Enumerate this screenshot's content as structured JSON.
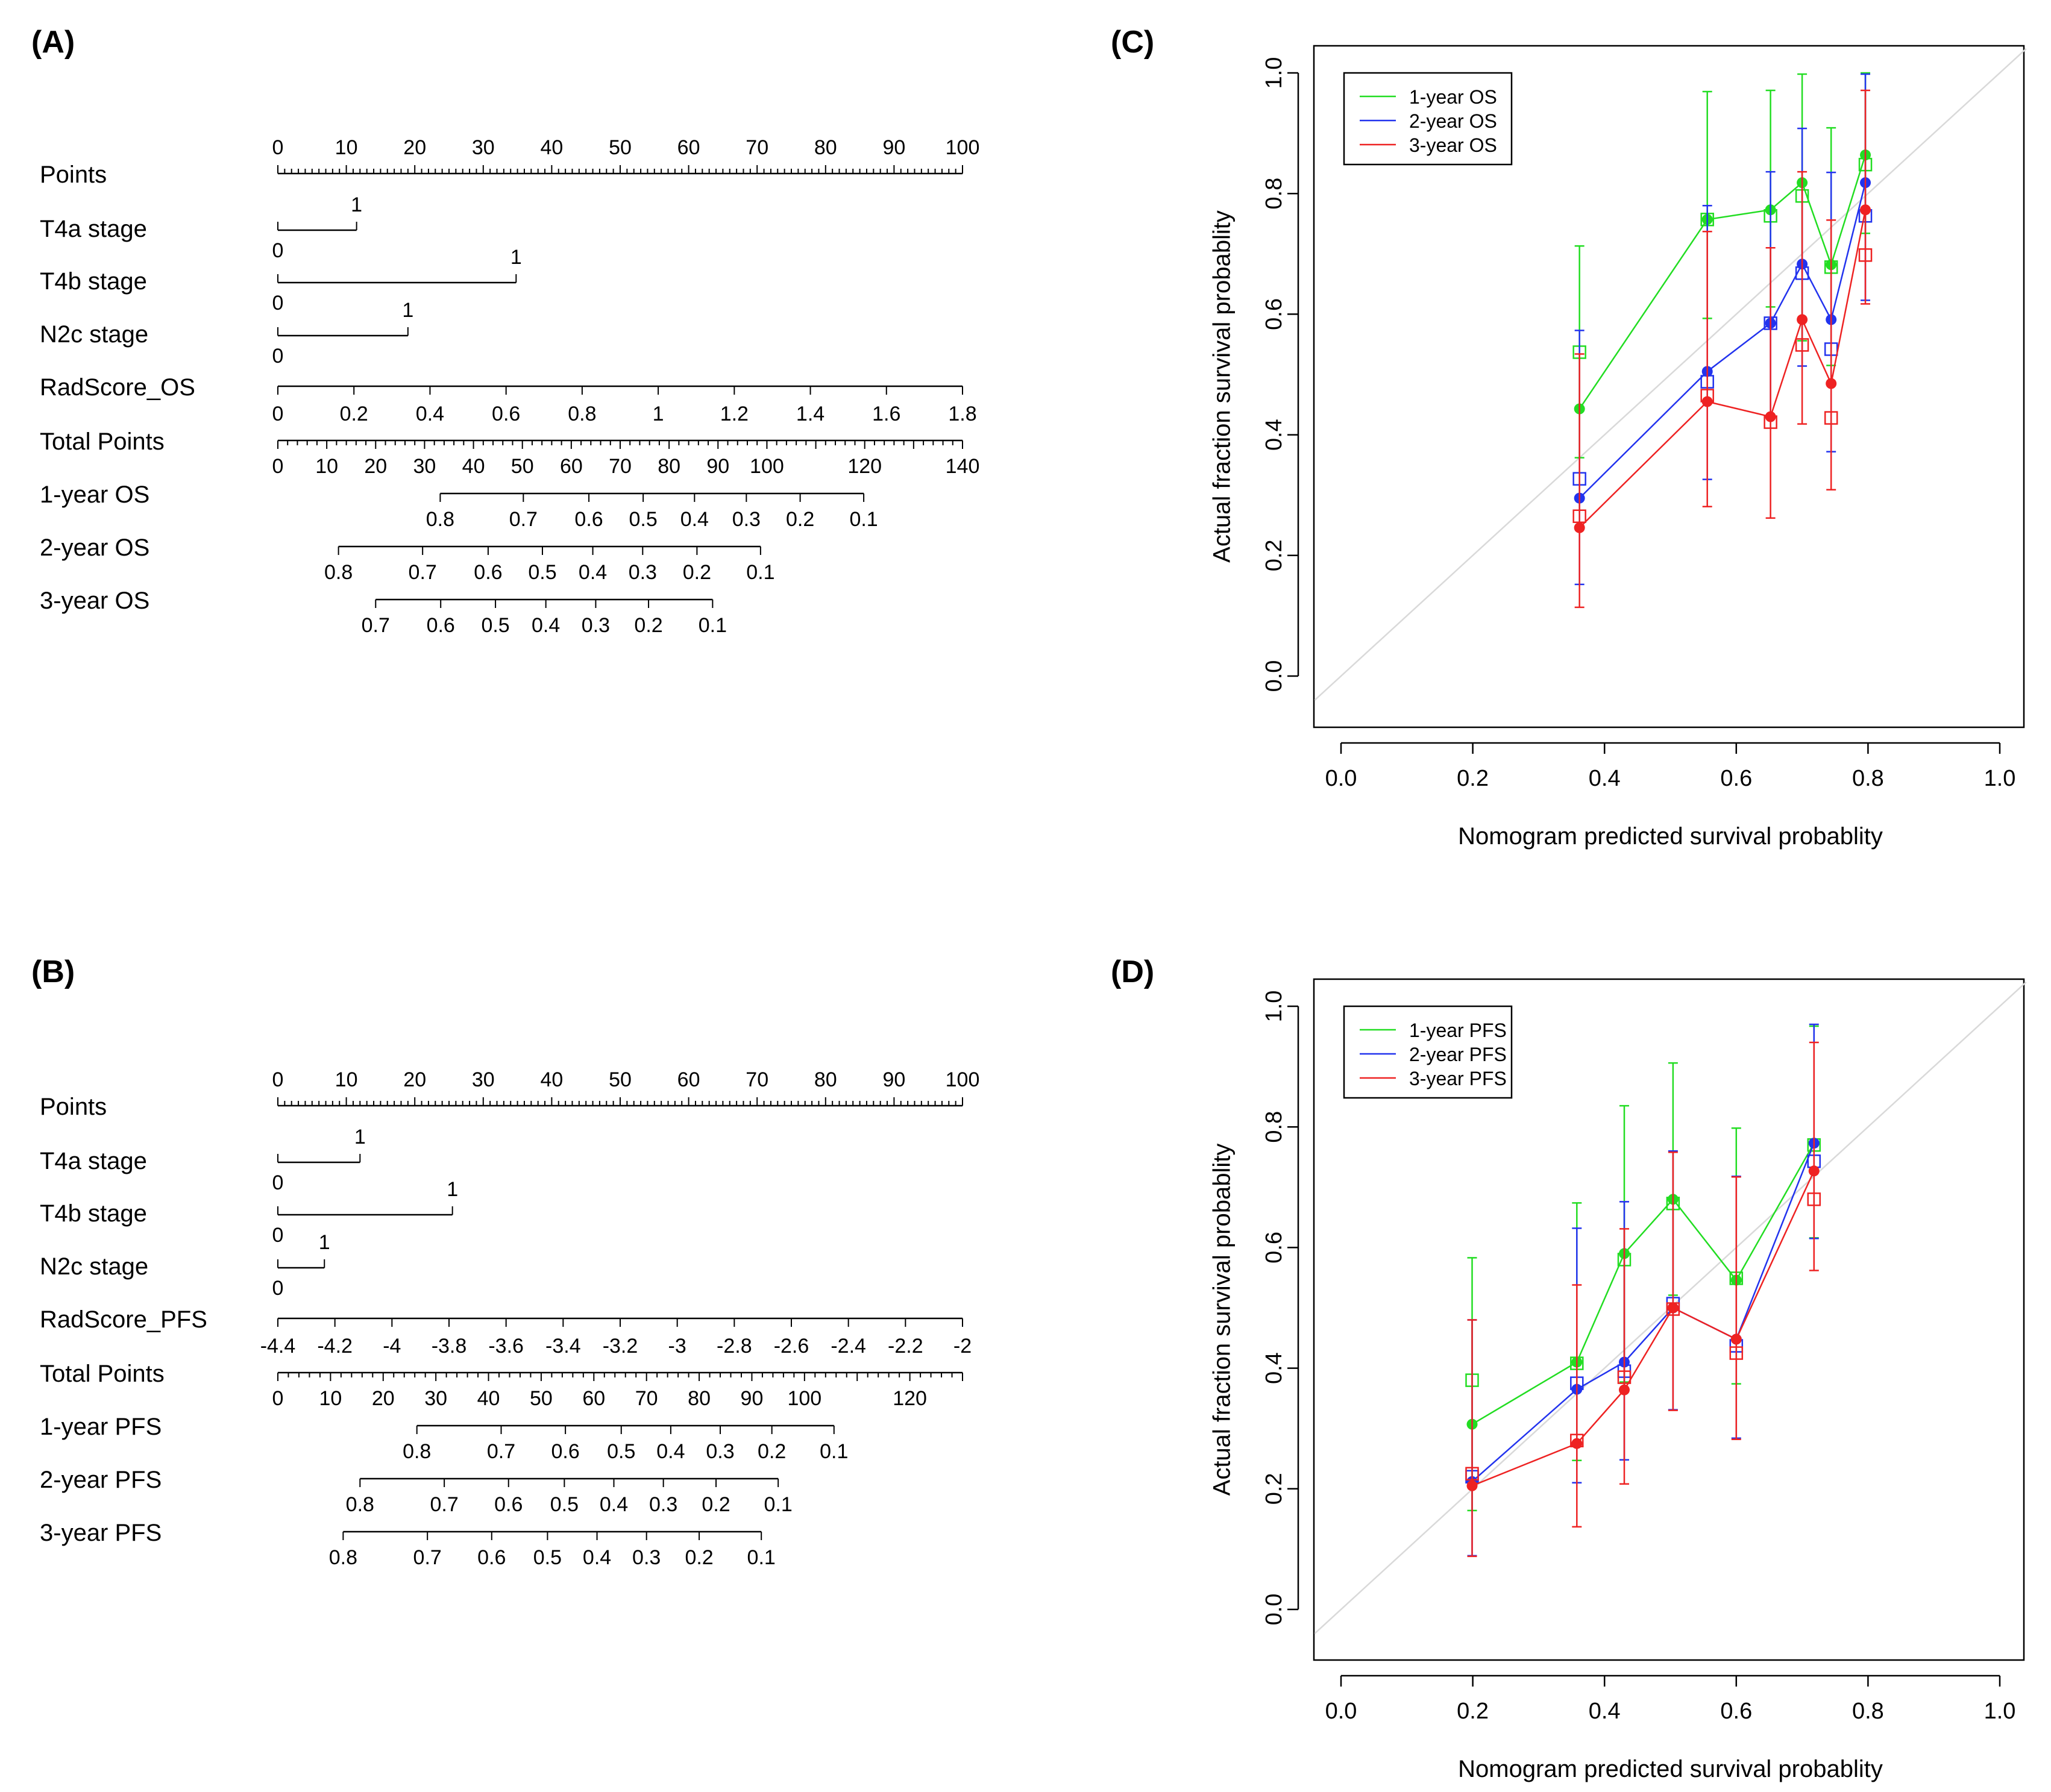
{
  "colors": {
    "one": "#22dd22",
    "two": "#2233ee",
    "three": "#ee2222",
    "axis": "#000000",
    "diag": "#d9d9d9"
  },
  "nomograms": [
    {
      "panel_label": "(A)",
      "rows": [
        {
          "label": "Points",
          "kind": "points",
          "ticks": [
            "0",
            "10",
            "20",
            "30",
            "40",
            "50",
            "60",
            "70",
            "80",
            "90",
            "100"
          ]
        },
        {
          "label": "T4a  stage",
          "kind": "binary",
          "one_pts": 11.5
        },
        {
          "label": "T4b  stage",
          "kind": "binary",
          "one_pts": 34.8
        },
        {
          "label": "N2c  stage",
          "kind": "binary",
          "one_pts": 19
        },
        {
          "label": "RadScore_OS",
          "kind": "scale",
          "left_value": 0,
          "right_value": 1.8,
          "ticks": [
            "0",
            "0.2",
            "0.4",
            "0.6",
            "0.8",
            "1",
            "1.2",
            "1.4",
            "1.6",
            "1.8"
          ]
        },
        {
          "label": "Total Points",
          "kind": "total",
          "max": 140,
          "ticks": [
            "0",
            "10",
            "20",
            "30",
            "40",
            "50",
            "60",
            "70",
            "80",
            "90",
            "100",
            "120",
            "140"
          ]
        },
        {
          "label": "1-year OS",
          "kind": "surv",
          "ticks": [
            {
              "t": "0.8",
              "v": 33.2
            },
            {
              "t": "0.7",
              "v": 50.2
            },
            {
              "t": "0.6",
              "v": 63.6
            },
            {
              "t": "0.5",
              "v": 74.7
            },
            {
              "t": "0.4",
              "v": 85.2
            },
            {
              "t": "0.3",
              "v": 95.8
            },
            {
              "t": "0.2",
              "v": 106.8
            },
            {
              "t": "0.1",
              "v": 119.8
            }
          ],
          "start": 33.2,
          "end": 119.8
        },
        {
          "label": "2-year OS",
          "kind": "surv",
          "ticks": [
            {
              "t": "0.8",
              "v": 12.4
            },
            {
              "t": "0.7",
              "v": 29.6
            },
            {
              "t": "0.6",
              "v": 43
            },
            {
              "t": "0.5",
              "v": 54.1
            },
            {
              "t": "0.4",
              "v": 64.4
            },
            {
              "t": "0.3",
              "v": 74.6
            },
            {
              "t": "0.2",
              "v": 85.7
            },
            {
              "t": "0.1",
              "v": 98.7
            }
          ],
          "start": 12.4,
          "end": 98.7
        },
        {
          "label": "3-year OS",
          "kind": "surv",
          "ticks": [
            {
              "t": "0.7",
              "v": 20
            },
            {
              "t": "0.6",
              "v": 33.3
            },
            {
              "t": "0.5",
              "v": 44.5
            },
            {
              "t": "0.4",
              "v": 54.8
            },
            {
              "t": "0.3",
              "v": 65
            },
            {
              "t": "0.2",
              "v": 75.8
            },
            {
              "t": "0.1",
              "v": 88.9
            }
          ],
          "start": 20,
          "end": 88.9
        }
      ]
    },
    {
      "panel_label": "(B)",
      "rows": [
        {
          "label": "Points",
          "kind": "points",
          "ticks": [
            "0",
            "10",
            "20",
            "30",
            "40",
            "50",
            "60",
            "70",
            "80",
            "90",
            "100"
          ]
        },
        {
          "label": "T4a  stage",
          "kind": "binary",
          "one_pts": 12
        },
        {
          "label": "T4b  stage",
          "kind": "binary",
          "one_pts": 25.5
        },
        {
          "label": "N2c  stage",
          "kind": "binary",
          "one_pts": 6.8
        },
        {
          "label": "RadScore_PFS",
          "kind": "scale",
          "left_value": -4.4,
          "right_value": -2,
          "ticks": [
            "-4.4",
            "-4.2",
            "-4",
            "-3.8",
            "-3.6",
            "-3.4",
            "-3.2",
            "-3",
            "-2.8",
            "-2.6",
            "-2.4",
            "-2.2",
            "-2"
          ]
        },
        {
          "label": "Total Points",
          "kind": "total",
          "max": 130,
          "ticks": [
            "0",
            "10",
            "20",
            "30",
            "40",
            "50",
            "60",
            "70",
            "80",
            "90",
            "100",
            "120"
          ]
        },
        {
          "label": "1-year PFS",
          "kind": "surv",
          "ticks": [
            {
              "t": "0.8",
              "v": 26.4
            },
            {
              "t": "0.7",
              "v": 42.4
            },
            {
              "t": "0.6",
              "v": 54.6
            },
            {
              "t": "0.5",
              "v": 65.2
            },
            {
              "t": "0.4",
              "v": 74.6
            },
            {
              "t": "0.3",
              "v": 84
            },
            {
              "t": "0.2",
              "v": 93.8
            },
            {
              "t": "0.1",
              "v": 105.6
            }
          ],
          "start": 26.4,
          "end": 105.6
        },
        {
          "label": "2-year PFS",
          "kind": "surv",
          "ticks": [
            {
              "t": "0.8",
              "v": 15.6
            },
            {
              "t": "0.7",
              "v": 31.6
            },
            {
              "t": "0.6",
              "v": 43.8
            },
            {
              "t": "0.5",
              "v": 54.4
            },
            {
              "t": "0.4",
              "v": 63.8
            },
            {
              "t": "0.3",
              "v": 73.2
            },
            {
              "t": "0.2",
              "v": 83.2
            },
            {
              "t": "0.1",
              "v": 95
            }
          ],
          "start": 15.6,
          "end": 95
        },
        {
          "label": "3-year PFS",
          "kind": "surv",
          "ticks": [
            {
              "t": "0.8",
              "v": 12.4
            },
            {
              "t": "0.7",
              "v": 28.4
            },
            {
              "t": "0.6",
              "v": 40.6
            },
            {
              "t": "0.5",
              "v": 51.2
            },
            {
              "t": "0.4",
              "v": 60.6
            },
            {
              "t": "0.3",
              "v": 70
            },
            {
              "t": "0.2",
              "v": 80
            },
            {
              "t": "0.1",
              "v": 91.8
            }
          ],
          "start": 12.4,
          "end": 91.8
        }
      ]
    }
  ],
  "chart_data": [
    {
      "panel_label": "(C)",
      "type": "line",
      "title": "",
      "xlabel": "Nomogram predicted survival probablity",
      "ylabel": "Actual fraction survival probablity",
      "xlim": [
        0,
        1
      ],
      "ylim": [
        0,
        1
      ],
      "ticks": [
        "0.0",
        "0.2",
        "0.4",
        "0.6",
        "0.8",
        "1.0"
      ],
      "diagonal": true,
      "legend_position": "top-left",
      "series": [
        {
          "name": "1-year OS",
          "color_key": "one",
          "x": [
            0.362,
            0.556,
            0.652,
            0.7,
            0.744,
            0.796
          ],
          "pred": [
            0.443,
            0.757,
            0.773,
            0.818,
            0.682,
            0.864
          ],
          "obs": [
            0.537,
            0.757,
            0.763,
            0.796,
            0.678,
            0.848
          ],
          "lo": [
            0.362,
            0.593,
            0.612,
            0.556,
            0.515,
            0.734
          ],
          "hi": [
            0.713,
            0.969,
            0.971,
            0.998,
            0.909,
            1.0
          ]
        },
        {
          "name": "2-year OS",
          "color_key": "two",
          "x": [
            0.362,
            0.556,
            0.652,
            0.7,
            0.744,
            0.796
          ],
          "pred": [
            0.295,
            0.505,
            0.585,
            0.683,
            0.591,
            0.818
          ],
          "obs": [
            0.327,
            0.488,
            0.585,
            0.668,
            0.542,
            0.763
          ],
          "lo": [
            0.152,
            0.326,
            0.432,
            0.514,
            0.372,
            0.623
          ],
          "hi": [
            0.573,
            0.78,
            0.836,
            0.908,
            0.835,
            0.998
          ]
        },
        {
          "name": "3-year OS",
          "color_key": "three",
          "x": [
            0.362,
            0.556,
            0.652,
            0.7,
            0.744,
            0.796
          ],
          "pred": [
            0.246,
            0.455,
            0.43,
            0.591,
            0.485,
            0.773
          ],
          "obs": [
            0.265,
            0.465,
            0.421,
            0.549,
            0.428,
            0.698
          ],
          "lo": [
            0.114,
            0.281,
            0.262,
            0.418,
            0.309,
            0.617
          ],
          "hi": [
            0.534,
            0.737,
            0.71,
            0.836,
            0.756,
            0.971
          ]
        }
      ]
    },
    {
      "panel_label": "(D)",
      "type": "line",
      "title": "",
      "xlabel": "Nomogram predicted survival probablity",
      "ylabel": "Actual fraction survival probablity",
      "xlim": [
        0,
        1
      ],
      "ylim": [
        0,
        1
      ],
      "ticks": [
        "0.0",
        "0.2",
        "0.4",
        "0.6",
        "0.8",
        "1.0"
      ],
      "diagonal": true,
      "legend_position": "top-left",
      "series": [
        {
          "name": "1-year PFS",
          "color_key": "one",
          "x": [
            0.199,
            0.358,
            0.43,
            0.504,
            0.6,
            0.718
          ],
          "pred": [
            0.307,
            0.41,
            0.59,
            0.68,
            0.546,
            0.773
          ],
          "obs": [
            0.38,
            0.408,
            0.58,
            0.673,
            0.549,
            0.77
          ],
          "lo": [
            0.164,
            0.247,
            0.377,
            0.521,
            0.374,
            0.616
          ],
          "hi": [
            0.583,
            0.674,
            0.835,
            0.906,
            0.798,
            0.967
          ]
        },
        {
          "name": "2-year PFS",
          "color_key": "two",
          "x": [
            0.199,
            0.358,
            0.43,
            0.504,
            0.6,
            0.718
          ],
          "pred": [
            0.212,
            0.365,
            0.41,
            0.5,
            0.448,
            0.773
          ],
          "obs": [
            0.22,
            0.375,
            0.395,
            0.507,
            0.437,
            0.743
          ],
          "lo": [
            0.089,
            0.21,
            0.248,
            0.331,
            0.284,
            0.615
          ],
          "hi": [
            0.48,
            0.632,
            0.676,
            0.76,
            0.718,
            0.97
          ]
        },
        {
          "name": "3-year PFS",
          "color_key": "three",
          "x": [
            0.199,
            0.358,
            0.43,
            0.504,
            0.6,
            0.718
          ],
          "pred": [
            0.205,
            0.275,
            0.364,
            0.5,
            0.448,
            0.727
          ],
          "obs": [
            0.225,
            0.28,
            0.385,
            0.498,
            0.425,
            0.68
          ],
          "lo": [
            0.088,
            0.137,
            0.208,
            0.33,
            0.282,
            0.562
          ],
          "hi": [
            0.48,
            0.538,
            0.631,
            0.758,
            0.717,
            0.94
          ]
        }
      ]
    }
  ]
}
